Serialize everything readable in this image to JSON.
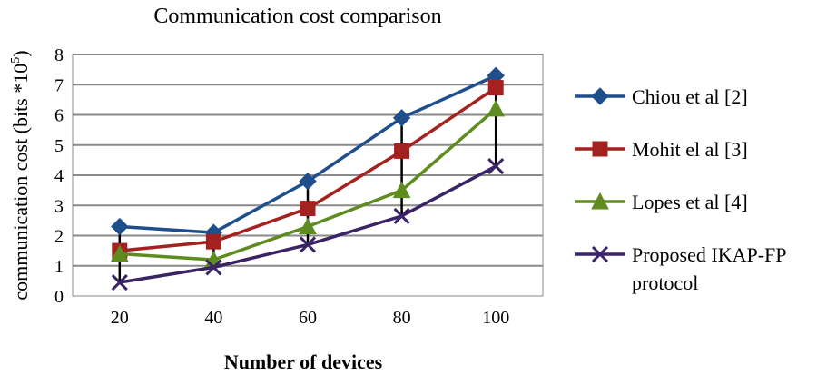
{
  "chart_data": {
    "type": "line",
    "title": "Communication cost comparison",
    "xlabel": "Number of devices",
    "ylabel": "communication cost (bits *10",
    "ylabel_exponent": "5",
    "ylabel_close": ")",
    "categories": [
      "20",
      "40",
      "60",
      "80",
      "100"
    ],
    "ylim": [
      0,
      8
    ],
    "yticks": [
      0,
      1,
      2,
      3,
      4,
      5,
      6,
      7,
      8
    ],
    "grid": true,
    "legend_position": "right",
    "series": [
      {
        "name": "Chiou et al [2]",
        "color": "#1f4e8c",
        "marker": "diamond",
        "values": [
          2.3,
          2.1,
          3.8,
          5.9,
          7.3
        ]
      },
      {
        "name": "Mohit el al [3]",
        "color": "#a3211f",
        "marker": "square",
        "values": [
          1.5,
          1.8,
          2.9,
          4.8,
          6.9
        ]
      },
      {
        "name": "Lopes et al [4]",
        "color": "#5e8c21",
        "marker": "triangle",
        "values": [
          1.4,
          1.2,
          2.3,
          3.5,
          6.2
        ]
      },
      {
        "name": "Proposed IKAP-FP protocol",
        "color": "#3b2466",
        "marker": "x",
        "values": [
          0.45,
          0.95,
          1.7,
          2.65,
          4.3
        ],
        "legend_lines": [
          "Proposed IKAP-FP",
          "protocol"
        ]
      }
    ]
  }
}
